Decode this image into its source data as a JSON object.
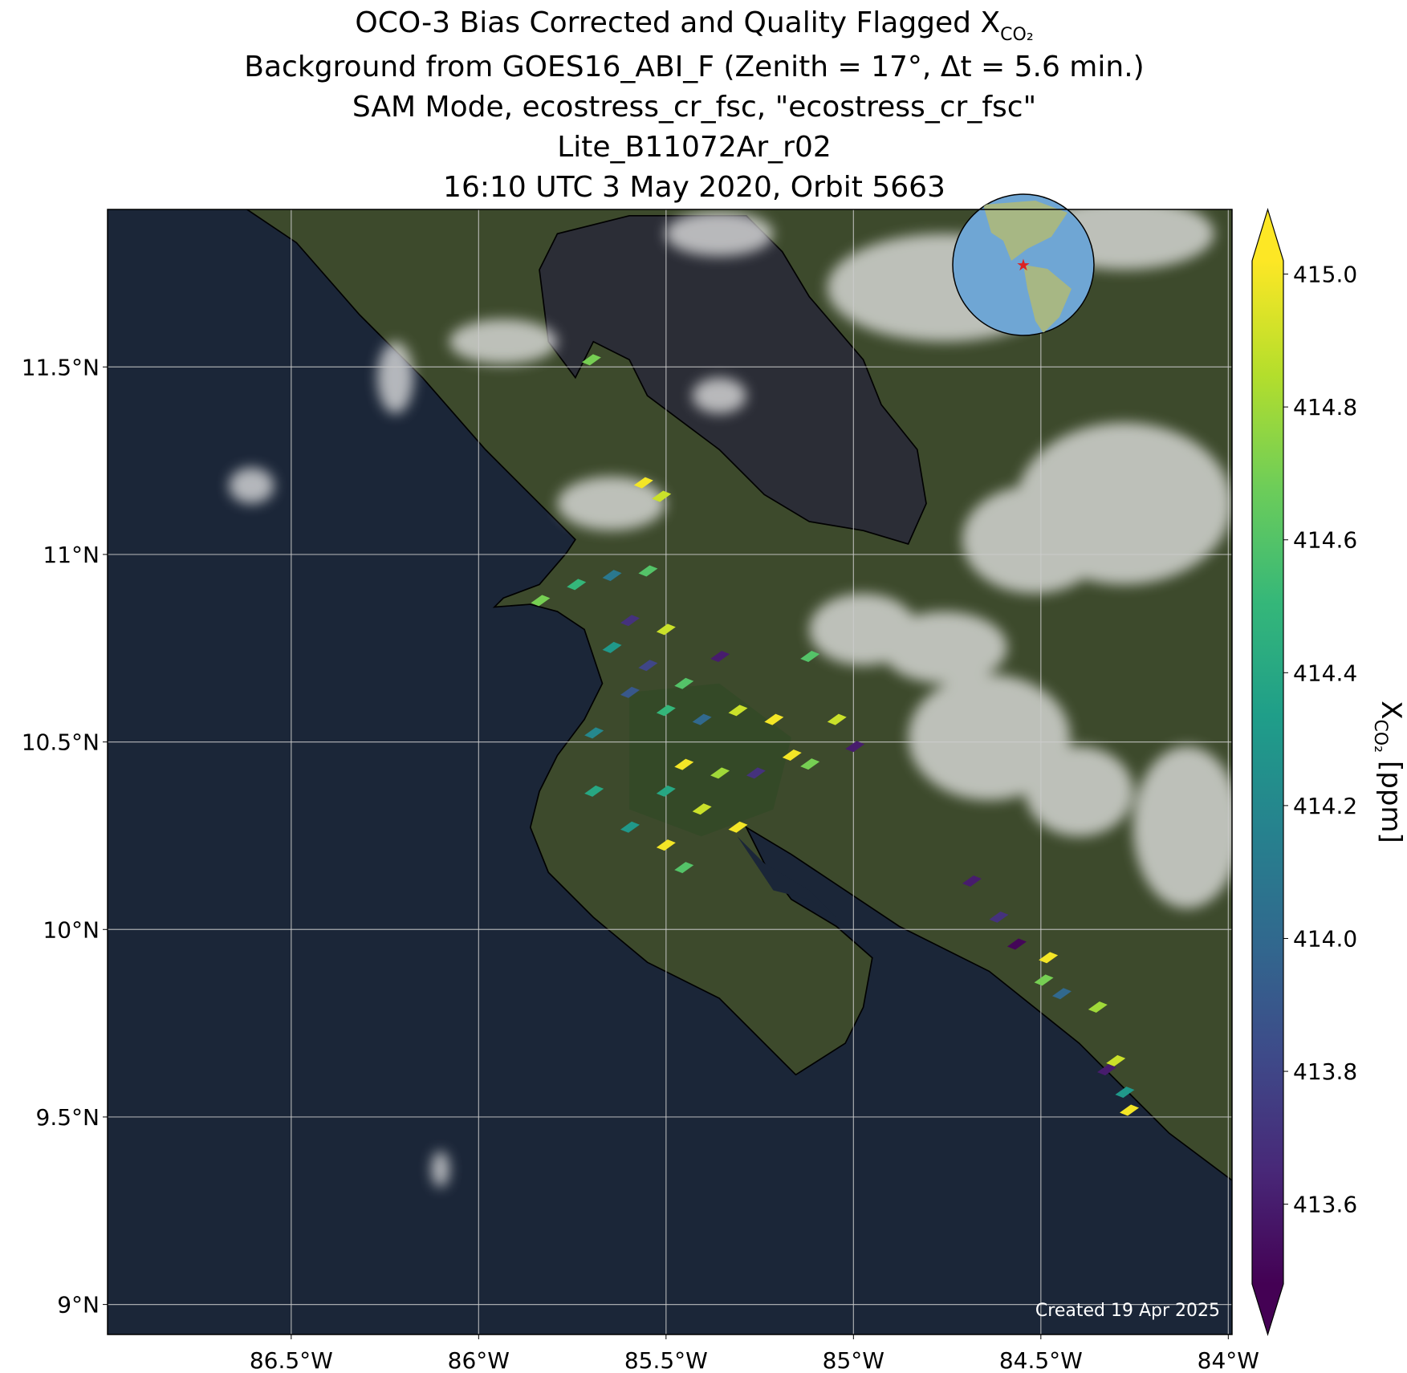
{
  "chart_data": {
    "type": "scatter",
    "title": "OCO-3 Bias Corrected and Quality Flagged X",
    "title_sub": "CO₂",
    "subtitles": [
      "Background from GOES16_ABI_F (Zenith = 17°, Δt =  5.6 min.)",
      "SAM Mode, ecostress_cr_fsc, \"ecostress_cr_fsc\"",
      "Lite_B11072Ar_r02",
      "16:10 UTC 3 May 2020, Orbit 5663"
    ],
    "footnote": "Created 19 Apr 2025",
    "xlim": [
      -86.99,
      -83.99
    ],
    "ylim": [
      8.92,
      11.92
    ],
    "xticks": [
      {
        "value": -86.5,
        "label": "86.5°W"
      },
      {
        "value": -86,
        "label": "86°W"
      },
      {
        "value": -85.5,
        "label": "85.5°W"
      },
      {
        "value": -85,
        "label": "85°W"
      },
      {
        "value": -84.5,
        "label": "84.5°W"
      },
      {
        "value": -84,
        "label": "84°W"
      }
    ],
    "yticks": [
      {
        "value": 9,
        "label": "9°N"
      },
      {
        "value": 9.5,
        "label": "9.5°N"
      },
      {
        "value": 10,
        "label": "10°N"
      },
      {
        "value": 10.5,
        "label": "10.5°N"
      },
      {
        "value": 11,
        "label": "11°N"
      },
      {
        "value": 11.5,
        "label": "11.5°N"
      }
    ],
    "grid": true,
    "colormap": "viridis",
    "x": [
      -85.835,
      -85.739,
      -85.644,
      -85.548,
      -85.596,
      -85.5,
      -85.644,
      -85.548,
      -85.452,
      -85.356,
      -85.308,
      -85.404,
      -85.5,
      -85.212,
      -85.596,
      -85.692,
      -85.452,
      -85.356,
      -85.26,
      -85.164,
      -85.116,
      -85.5,
      -85.404,
      -85.308,
      -85.596,
      -85.692,
      -85.5,
      -85.452,
      -85.116,
      -85.044,
      -84.996,
      -84.684,
      -84.612,
      -84.564,
      -84.48,
      -84.492,
      -84.444,
      -84.348,
      -84.3,
      -84.324,
      -84.276,
      -84.264,
      -85.699,
      -85.56,
      -85.512
    ],
    "y": [
      10.877,
      10.92,
      10.944,
      10.956,
      10.824,
      10.8,
      10.752,
      10.704,
      10.656,
      10.728,
      10.584,
      10.56,
      10.584,
      10.56,
      10.632,
      10.524,
      10.44,
      10.417,
      10.417,
      10.465,
      10.441,
      10.369,
      10.321,
      10.273,
      10.273,
      10.369,
      10.225,
      10.165,
      10.728,
      10.56,
      10.488,
      10.129,
      10.033,
      9.961,
      9.925,
      9.865,
      9.829,
      9.793,
      9.65,
      9.626,
      9.566,
      9.518,
      11.519,
      11.191,
      11.155
    ],
    "values": [
      414.7,
      414.5,
      414.1,
      414.6,
      413.7,
      414.9,
      414.3,
      413.8,
      414.6,
      413.6,
      414.9,
      414.0,
      414.5,
      415.0,
      413.9,
      414.2,
      415.0,
      414.8,
      413.7,
      415.0,
      414.7,
      414.4,
      414.9,
      415.0,
      414.3,
      414.4,
      415.0,
      414.6,
      414.6,
      414.9,
      413.6,
      413.6,
      413.7,
      413.5,
      415.0,
      414.7,
      414.0,
      414.8,
      414.9,
      413.6,
      414.3,
      415.0,
      414.7,
      415.0,
      414.9
    ],
    "colorbar": {
      "label": "X",
      "label_sub": "CO₂",
      "label_unit": "[ppm]",
      "lim": [
        413.48,
        415.02
      ],
      "ticks": [
        413.6,
        413.8,
        {
          "value": 414,
          "label": "414.0"
        },
        414.2,
        414.4,
        414.6,
        414.8,
        {
          "value": 415,
          "label": "415.0"
        }
      ]
    }
  }
}
